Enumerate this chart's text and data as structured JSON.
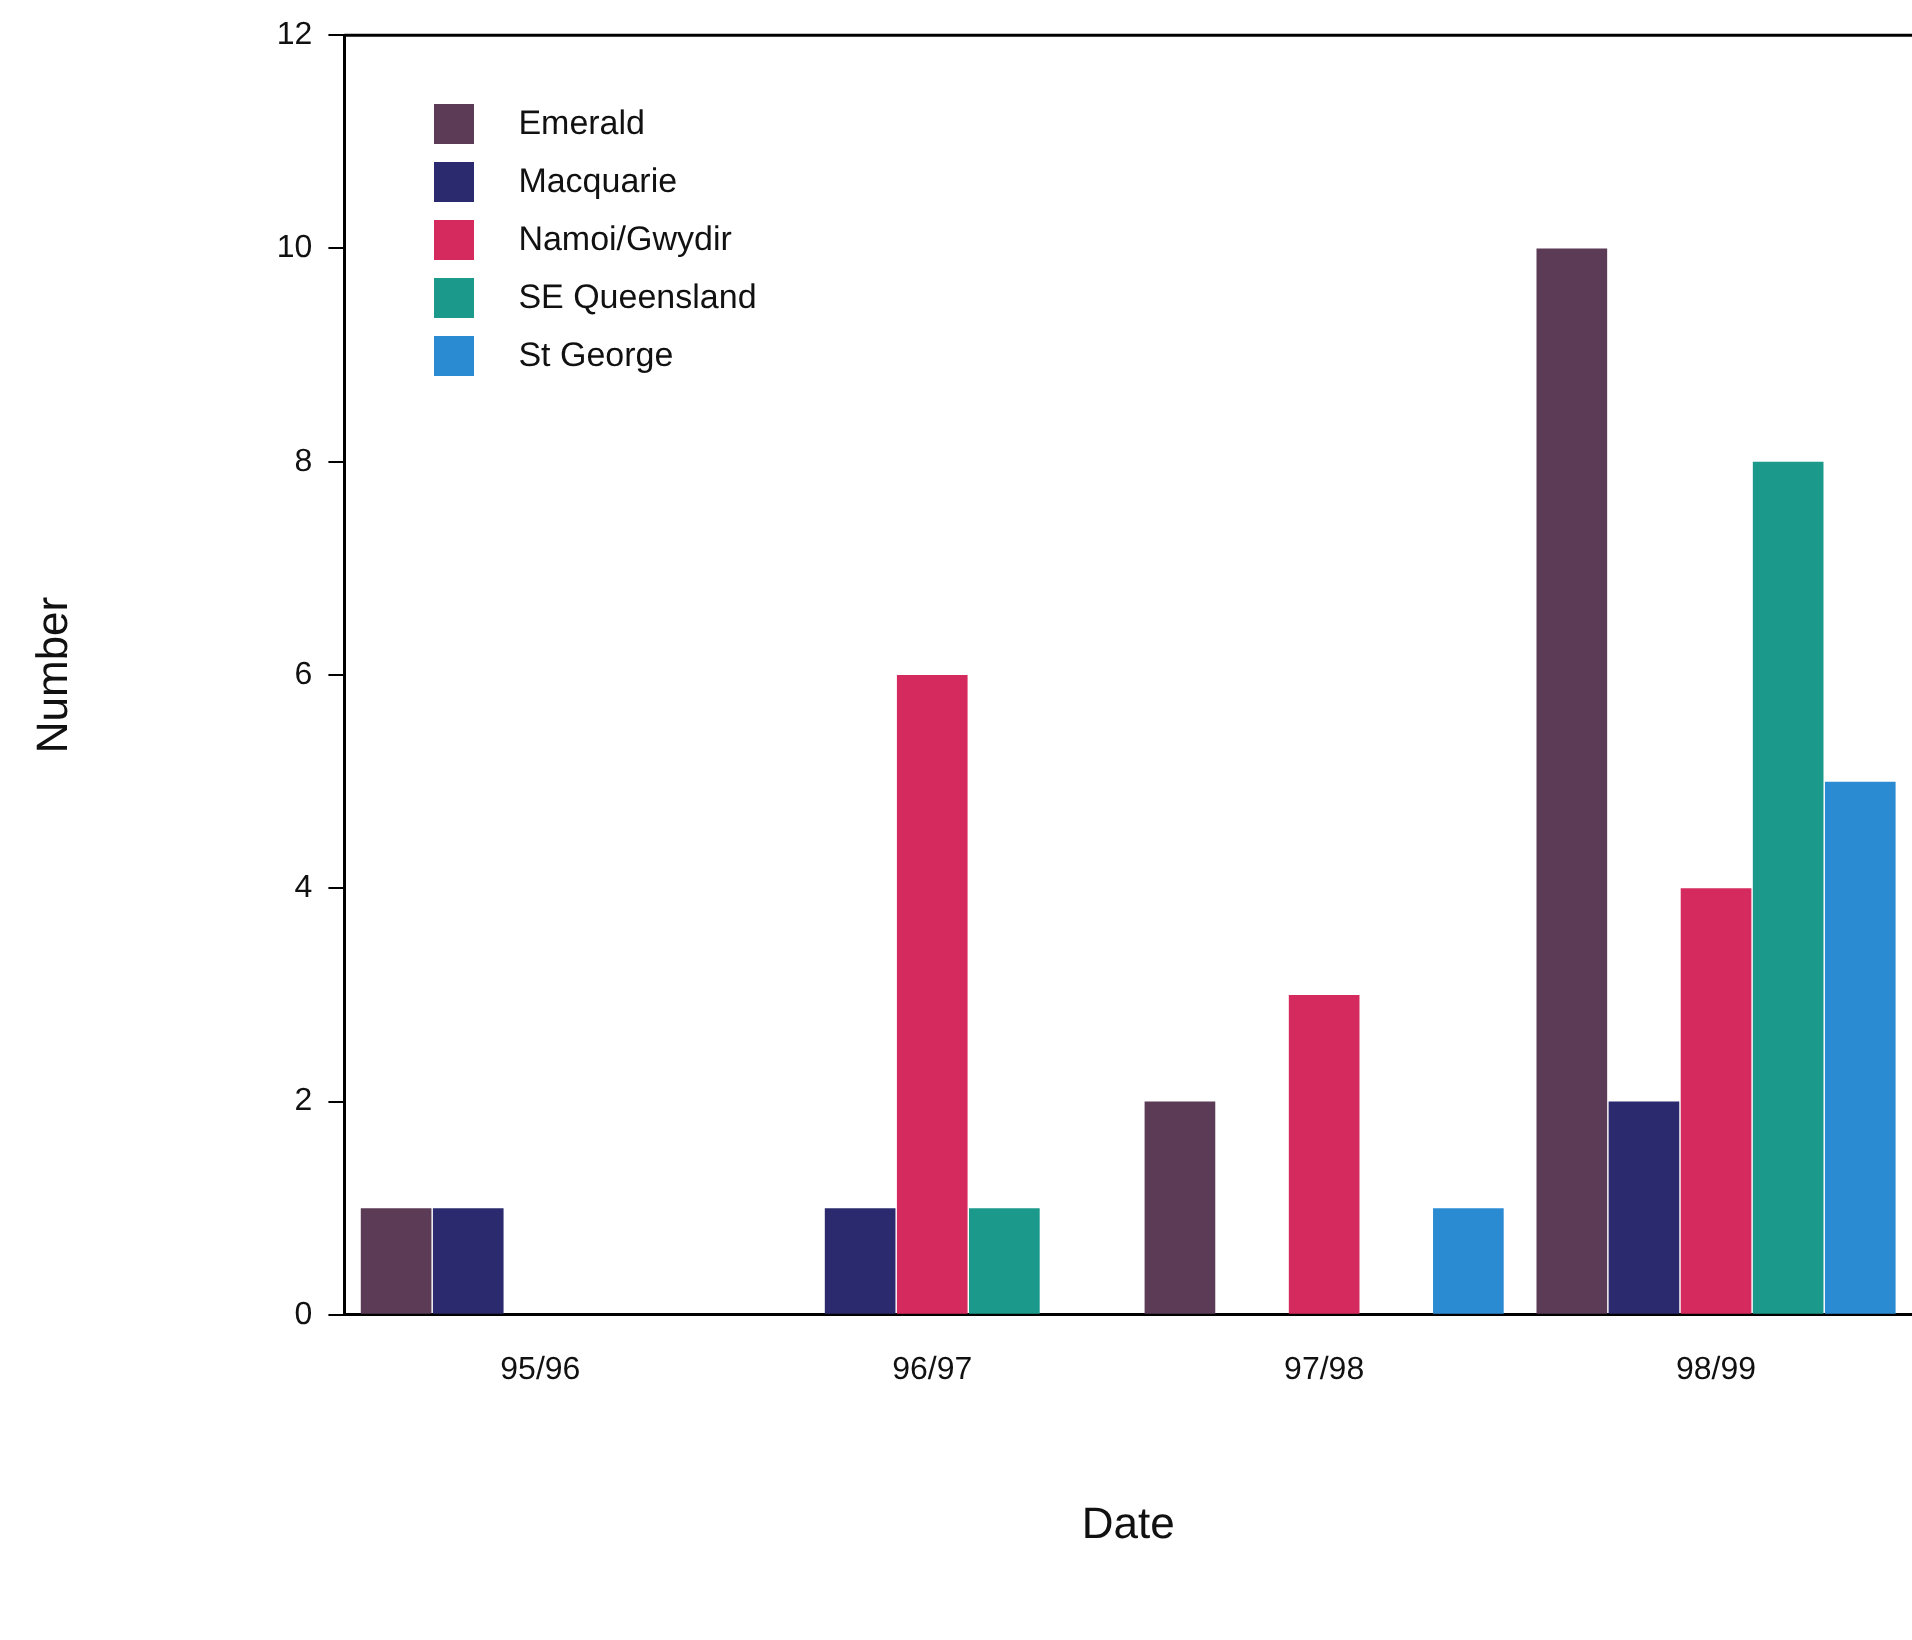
{
  "chart_data": {
    "type": "bar",
    "xlabel": "Date",
    "ylabel": "Number",
    "categories": [
      "95/96",
      "96/97",
      "97/98",
      "98/99"
    ],
    "series": [
      {
        "name": "Emerald",
        "color": "#5b3b56",
        "values": [
          1,
          0,
          2,
          10
        ]
      },
      {
        "name": "Macquarie",
        "color": "#2b2a6e",
        "values": [
          1,
          1,
          0,
          2
        ]
      },
      {
        "name": "Namoi/Gwydir",
        "color": "#d42a5e",
        "values": [
          0,
          6,
          3,
          4
        ]
      },
      {
        "name": "SE Queensland",
        "color": "#1b998b",
        "values": [
          0,
          1,
          0,
          8
        ]
      },
      {
        "name": "St George",
        "color": "#2b8bd2",
        "values": [
          0,
          0,
          1,
          5
        ]
      }
    ],
    "ylim": [
      0,
      12
    ],
    "yticks": [
      0,
      2,
      4,
      6,
      8,
      10,
      12
    ],
    "legend": "top left"
  }
}
